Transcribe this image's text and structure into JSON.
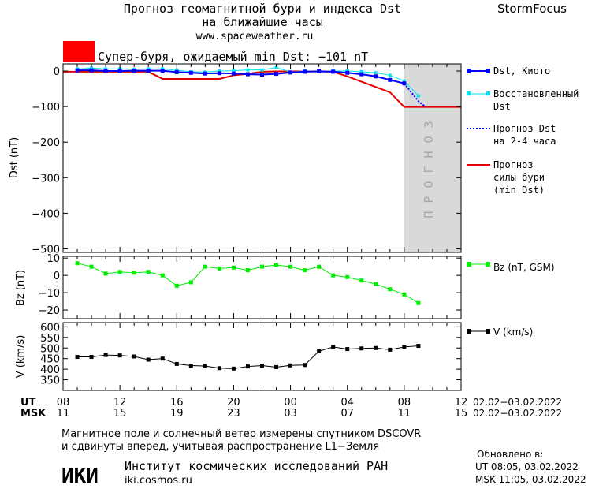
{
  "header": {
    "title_line1": "Прогноз геомагнитной бури и индекса Dst",
    "title_line2": "на ближайшие часы",
    "site": "www.spaceweather.ru",
    "brand": "StormFocus"
  },
  "alert": {
    "text": "Супер-буря, ожидаемый min Dst: −101 nT",
    "color": "#ff0000"
  },
  "legend": {
    "dst_kyoto": "Dst, Киото",
    "restored_1": "Восстановленный",
    "restored_2": "Dst",
    "forecast_1": "Прогноз Dst",
    "forecast_2": "на 2-4 часа",
    "strength_1": "Прогноз",
    "strength_2": "силы бури",
    "strength_3": "(min Dst)",
    "bz": "Bz (nT, GSM)",
    "v": "V (km/s)"
  },
  "forecast_label": "ПРОГНОЗ",
  "colors": {
    "dst_kyoto": "#0000ff",
    "restored": "#00e5ee",
    "forecast": "#0000ff",
    "strength": "#e00000",
    "bz": "#00ee00",
    "v": "#000000",
    "forecast_zone": "#d9d9d9"
  },
  "footer": {
    "ut_label": "UT",
    "msk_label": "MSK",
    "ut_ticks": [
      "08",
      "12",
      "16",
      "20",
      "00",
      "04",
      "08",
      "12"
    ],
    "msk_ticks": [
      "11",
      "15",
      "19",
      "23",
      "03",
      "07",
      "11",
      "15"
    ],
    "ut_range": "02.02−03.02.2022",
    "msk_range": "02.02−03.02.2022",
    "note_1": "Магнитное поле и солнечный ветер измерены спутником DSCOVR",
    "note_2": "и сдвинуты вперед, учитывая распространение L1−Земля",
    "updated_label": "Обновлено в:",
    "updated_ut": "UT  08:05, 03.02.2022",
    "updated_msk": "MSK 11:05, 03.02.2022",
    "logo": "ИКИ",
    "institute": "Институт космических исследований РАН",
    "institute_site": "iki.cosmos.ru"
  },
  "chart_data": [
    {
      "type": "line",
      "ylabel": "Dst (nT)",
      "x_unit": "hours",
      "xlim": [
        8,
        36
      ],
      "ylim": [
        -510,
        20
      ],
      "yticks": [
        0,
        -100,
        -200,
        -300,
        -400,
        -500
      ],
      "forecast_zone_x": [
        32,
        36
      ],
      "series": [
        {
          "name": "Dst, Киото",
          "x": [
            9,
            10,
            11,
            12,
            13,
            14,
            15,
            16,
            17,
            18,
            19,
            20,
            21,
            22,
            23,
            24,
            25,
            26,
            27,
            28,
            29,
            30,
            31,
            32
          ],
          "y": [
            2,
            2,
            0,
            0,
            1,
            1,
            1,
            -3,
            -5,
            -7,
            -6,
            -7,
            -9,
            -10,
            -8,
            -4,
            -2,
            -1,
            -2,
            -5,
            -9,
            -15,
            -25,
            -35
          ]
        },
        {
          "name": "Восстановленный Dst",
          "x": [
            9,
            10,
            11,
            12,
            13,
            14,
            15,
            16,
            17,
            18,
            19,
            20,
            21,
            22,
            23,
            24,
            25,
            26,
            27,
            28,
            29,
            30,
            31,
            32,
            33
          ],
          "y": [
            6,
            8,
            6,
            6,
            5,
            6,
            6,
            2,
            -2,
            -3,
            0,
            1,
            3,
            3,
            10,
            -3,
            0,
            -2,
            0,
            0,
            -2,
            -5,
            -12,
            -28,
            -70
          ]
        },
        {
          "name": "Прогноз Dst на 2-4 часа",
          "x": [
            32,
            32.5,
            33,
            33.5
          ],
          "y": [
            -35,
            -60,
            -85,
            -101
          ]
        },
        {
          "name": "Прогноз силы бури (min Dst)",
          "x": [
            8,
            14,
            15,
            16,
            17,
            18,
            19,
            20,
            21,
            22,
            23,
            24,
            25,
            26,
            27,
            28,
            29,
            30,
            31,
            32,
            33,
            34,
            35,
            36
          ],
          "y": [
            -2,
            -2,
            -22,
            -22,
            -22,
            -22,
            -22,
            -12,
            -8,
            -2,
            -1,
            -1,
            -1,
            -1,
            -2,
            -15,
            -30,
            -45,
            -60,
            -101,
            -101,
            -101,
            -101,
            -101
          ]
        }
      ]
    },
    {
      "type": "line",
      "ylabel": "Bz (nT)",
      "xlim": [
        8,
        36
      ],
      "ylim": [
        -25,
        11
      ],
      "yticks": [
        10,
        0,
        -10,
        -20
      ],
      "series": [
        {
          "name": "Bz (nT, GSM)",
          "x": [
            9,
            10,
            11,
            12,
            13,
            14,
            15,
            16,
            17,
            18,
            19,
            20,
            21,
            22,
            23,
            24,
            25,
            26,
            27,
            28,
            29,
            30,
            31,
            32,
            33
          ],
          "y": [
            7,
            5,
            1,
            2,
            1.5,
            2,
            0,
            -6,
            -4,
            5,
            4,
            4.5,
            3,
            5,
            6,
            5,
            3,
            5,
            0,
            -1,
            -3,
            -5,
            -8,
            -11,
            -16
          ]
        }
      ]
    },
    {
      "type": "line",
      "ylabel": "V (km/s)",
      "xlim": [
        8,
        36
      ],
      "ylim": [
        300,
        620
      ],
      "yticks": [
        600,
        550,
        500,
        450,
        400,
        350
      ],
      "series": [
        {
          "name": "V (km/s)",
          "x": [
            9,
            10,
            11,
            12,
            13,
            14,
            15,
            16,
            17,
            18,
            19,
            20,
            21,
            22,
            23,
            24,
            25,
            26,
            27,
            28,
            29,
            30,
            31,
            32,
            33
          ],
          "y": [
            458,
            458,
            467,
            465,
            460,
            445,
            450,
            425,
            417,
            415,
            405,
            403,
            413,
            417,
            410,
            418,
            420,
            485,
            505,
            495,
            498,
            500,
            492,
            505,
            510
          ]
        }
      ]
    }
  ]
}
